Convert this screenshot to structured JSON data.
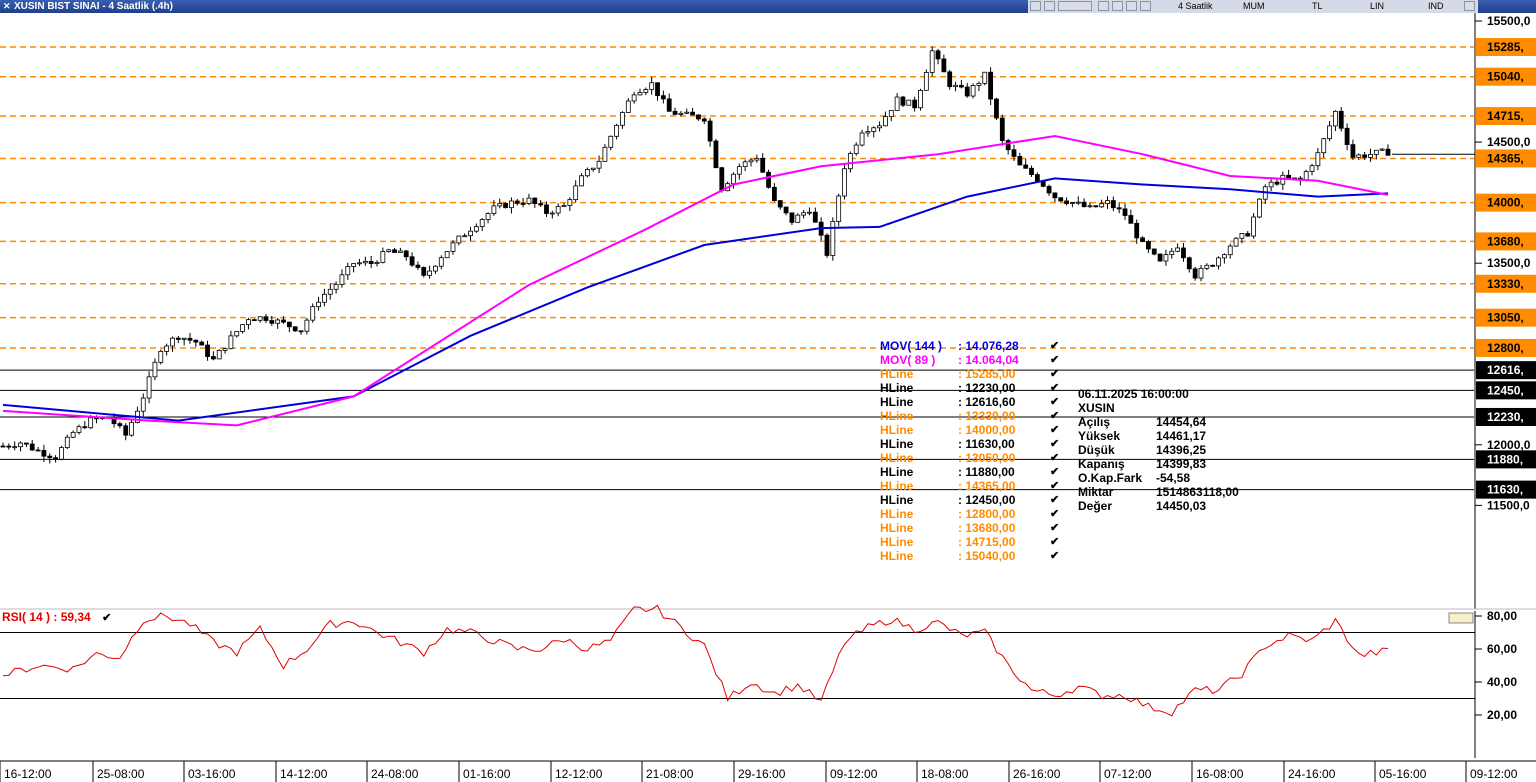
{
  "window": {
    "title": "XUSIN BIST SINAI - 4 Saatlik (.4h)"
  },
  "toolbar": {
    "period": "4 Saatlik",
    "type": "MUM",
    "currency": "TL",
    "scale": "LIN",
    "indicator": "IND"
  },
  "colors": {
    "orange": "#ff8c00",
    "blue": "#0000dd",
    "magenta": "#ff00ff",
    "rsi": "#e00000",
    "axis_label_bg": "#ff8c00"
  },
  "legend": [
    {
      "label": "MOV( 144 )",
      "value": ": 14.076,28",
      "color": "#0000dd"
    },
    {
      "label": "MOV( 89 )",
      "value": ": 14.064,04",
      "color": "#ff00ff"
    },
    {
      "label": "HLine",
      "value": ": 15285,00",
      "color": "#ff8c00"
    },
    {
      "label": "HLine",
      "value": ": 12230,00",
      "color": "#000000"
    },
    {
      "label": "HLine",
      "value": ": 12616,60",
      "color": "#000000"
    },
    {
      "label": "HLine",
      "value": ": 13330,00",
      "color": "#ff8c00"
    },
    {
      "label": "HLine",
      "value": ": 14000,00",
      "color": "#ff8c00"
    },
    {
      "label": "HLine",
      "value": ": 11630,00",
      "color": "#000000"
    },
    {
      "label": "HLine",
      "value": ": 13050,00",
      "color": "#ff8c00"
    },
    {
      "label": "HLine",
      "value": ": 11880,00",
      "color": "#000000"
    },
    {
      "label": "HLine",
      "value": ": 14365,00",
      "color": "#ff8c00"
    },
    {
      "label": "HLine",
      "value": ": 12450,00",
      "color": "#000000"
    },
    {
      "label": "HLine",
      "value": ": 12800,00",
      "color": "#ff8c00"
    },
    {
      "label": "HLine",
      "value": ": 13680,00",
      "color": "#ff8c00"
    },
    {
      "label": "HLine",
      "value": ": 14715,00",
      "color": "#ff8c00"
    },
    {
      "label": "HLine",
      "value": ": 15040,00",
      "color": "#ff8c00"
    }
  ],
  "info": {
    "datetime": "06.11.2025  16:00:00",
    "symbol": "XUSIN",
    "rows": [
      {
        "k": "Açılış",
        "v": "14454,64"
      },
      {
        "k": "Yüksek",
        "v": "14461,17"
      },
      {
        "k": "Düşük",
        "v": "14396,25"
      },
      {
        "k": "Kapanış",
        "v": "14399,83"
      },
      {
        "k": "O.Kap.Fark",
        "v": "-54,58"
      },
      {
        "k": "Miktar",
        "v": "1514863118,00"
      },
      {
        "k": "Değer",
        "v": "14450,03"
      }
    ]
  },
  "rsi": {
    "label": "RSI( 14 )",
    "value": ": 59,34"
  },
  "chart_data": {
    "type": "candlestick",
    "price_axis_ticks": [
      "15500,0",
      "14500,0",
      "13500,0",
      "12000,0",
      "11500,0"
    ],
    "price_axis_values": [
      15500,
      14500,
      13500,
      12000,
      11500
    ],
    "time_ticks": [
      "16-12:00",
      "25-08:00",
      "03-16:00",
      "14-12:00",
      "24-08:00",
      "01-16:00",
      "12-12:00",
      "21-08:00",
      "29-16:00",
      "09-12:00",
      "18-08:00",
      "26-16:00",
      "07-12:00",
      "16-08:00",
      "24-16:00",
      "05-16:00",
      "09-12:00"
    ],
    "orange_hlines": [
      {
        "value": 15285,
        "label": "15285,"
      },
      {
        "value": 15040,
        "label": "15040,"
      },
      {
        "value": 14715,
        "label": "14715,"
      },
      {
        "value": 14365,
        "label": "14365,"
      },
      {
        "value": 14000,
        "label": "14000,"
      },
      {
        "value": 13680,
        "label": "13680,"
      },
      {
        "value": 13330,
        "label": "13330,"
      },
      {
        "value": 13050,
        "label": "13050,"
      },
      {
        "value": 12800,
        "label": "12800,"
      }
    ],
    "black_hlines": [
      {
        "value": 12616.6,
        "label": "12616,"
      },
      {
        "value": 12450,
        "label": "12450,"
      },
      {
        "value": 12230,
        "label": "12230,"
      },
      {
        "value": 11880,
        "label": "11880,"
      },
      {
        "value": 11630,
        "label": "11630,"
      }
    ],
    "last_price": 14399.83,
    "close_path": [
      [
        0,
        11990
      ],
      [
        3,
        12020
      ],
      [
        6,
        11950
      ],
      [
        9,
        11900
      ],
      [
        12,
        12100
      ],
      [
        15,
        12200
      ],
      [
        18,
        12230
      ],
      [
        21,
        12080
      ],
      [
        24,
        12400
      ],
      [
        27,
        12800
      ],
      [
        30,
        12900
      ],
      [
        33,
        12850
      ],
      [
        36,
        12700
      ],
      [
        39,
        12880
      ],
      [
        42,
        13050
      ],
      [
        45,
        13050
      ],
      [
        48,
        13000
      ],
      [
        51,
        12950
      ],
      [
        54,
        13200
      ],
      [
        57,
        13330
      ],
      [
        60,
        13500
      ],
      [
        63,
        13500
      ],
      [
        66,
        13600
      ],
      [
        69,
        13560
      ],
      [
        72,
        13380
      ],
      [
        75,
        13560
      ],
      [
        78,
        13700
      ],
      [
        81,
        13830
      ],
      [
        84,
        13950
      ],
      [
        87,
        14000
      ],
      [
        90,
        14020
      ],
      [
        93,
        13920
      ],
      [
        96,
        13970
      ],
      [
        99,
        14200
      ],
      [
        102,
        14350
      ],
      [
        105,
        14650
      ],
      [
        108,
        14920
      ],
      [
        111,
        14980
      ],
      [
        114,
        14750
      ],
      [
        117,
        14720
      ],
      [
        120,
        14700
      ],
      [
        123,
        14120
      ],
      [
        126,
        14300
      ],
      [
        129,
        14380
      ],
      [
        132,
        14000
      ],
      [
        135,
        13850
      ],
      [
        138,
        13950
      ],
      [
        141,
        13580
      ],
      [
        144,
        14300
      ],
      [
        147,
        14600
      ],
      [
        150,
        14650
      ],
      [
        153,
        14850
      ],
      [
        156,
        14800
      ],
      [
        159,
        15250
      ],
      [
        162,
        14980
      ],
      [
        165,
        14900
      ],
      [
        168,
        15050
      ],
      [
        171,
        14500
      ],
      [
        174,
        14300
      ],
      [
        177,
        14200
      ],
      [
        180,
        14050
      ],
      [
        183,
        14000
      ],
      [
        186,
        13950
      ],
      [
        189,
        14000
      ],
      [
        192,
        13900
      ],
      [
        195,
        13650
      ],
      [
        198,
        13500
      ],
      [
        201,
        13650
      ],
      [
        204,
        13400
      ],
      [
        207,
        13500
      ],
      [
        210,
        13650
      ],
      [
        213,
        13750
      ],
      [
        216,
        14130
      ],
      [
        219,
        14200
      ],
      [
        222,
        14180
      ],
      [
        225,
        14400
      ],
      [
        228,
        14750
      ],
      [
        231,
        14380
      ],
      [
        234,
        14400
      ],
      [
        237,
        14420
      ]
    ],
    "mov144": [
      [
        0,
        12330
      ],
      [
        30,
        12200
      ],
      [
        60,
        12400
      ],
      [
        80,
        12900
      ],
      [
        100,
        13300
      ],
      [
        120,
        13650
      ],
      [
        140,
        13790
      ],
      [
        150,
        13800
      ],
      [
        165,
        14050
      ],
      [
        180,
        14200
      ],
      [
        195,
        14150
      ],
      [
        210,
        14110
      ],
      [
        225,
        14050
      ],
      [
        237,
        14076
      ]
    ],
    "mov89": [
      [
        0,
        12280
      ],
      [
        25,
        12200
      ],
      [
        40,
        12160
      ],
      [
        60,
        12400
      ],
      [
        90,
        13320
      ],
      [
        110,
        13780
      ],
      [
        125,
        14150
      ],
      [
        140,
        14300
      ],
      [
        160,
        14400
      ],
      [
        180,
        14550
      ],
      [
        195,
        14400
      ],
      [
        210,
        14220
      ],
      [
        225,
        14180
      ],
      [
        237,
        14064
      ]
    ],
    "rsi_ticks": [
      80,
      60,
      40,
      20
    ],
    "rsi_levels": [
      70,
      30
    ],
    "rsi_values": [
      [
        0,
        44
      ],
      [
        6,
        50
      ],
      [
        12,
        48
      ],
      [
        16,
        57
      ],
      [
        20,
        55
      ],
      [
        24,
        78
      ],
      [
        28,
        80
      ],
      [
        32,
        75
      ],
      [
        36,
        64
      ],
      [
        40,
        58
      ],
      [
        44,
        72
      ],
      [
        48,
        50
      ],
      [
        52,
        60
      ],
      [
        56,
        75
      ],
      [
        60,
        77
      ],
      [
        64,
        70
      ],
      [
        68,
        64
      ],
      [
        72,
        58
      ],
      [
        76,
        72
      ],
      [
        80,
        70
      ],
      [
        84,
        65
      ],
      [
        88,
        60
      ],
      [
        92,
        60
      ],
      [
        96,
        66
      ],
      [
        100,
        60
      ],
      [
        104,
        65
      ],
      [
        108,
        84
      ],
      [
        112,
        84
      ],
      [
        116,
        73
      ],
      [
        120,
        62
      ],
      [
        124,
        30
      ],
      [
        128,
        40
      ],
      [
        132,
        33
      ],
      [
        136,
        38
      ],
      [
        140,
        28
      ],
      [
        144,
        64
      ],
      [
        148,
        73
      ],
      [
        152,
        78
      ],
      [
        156,
        72
      ],
      [
        160,
        76
      ],
      [
        164,
        68
      ],
      [
        168,
        70
      ],
      [
        172,
        50
      ],
      [
        176,
        35
      ],
      [
        180,
        32
      ],
      [
        184,
        37
      ],
      [
        188,
        32
      ],
      [
        192,
        32
      ],
      [
        196,
        25
      ],
      [
        200,
        22
      ],
      [
        204,
        35
      ],
      [
        208,
        35
      ],
      [
        212,
        45
      ],
      [
        216,
        62
      ],
      [
        220,
        68
      ],
      [
        224,
        65
      ],
      [
        228,
        77
      ],
      [
        232,
        56
      ],
      [
        237,
        59
      ]
    ]
  }
}
